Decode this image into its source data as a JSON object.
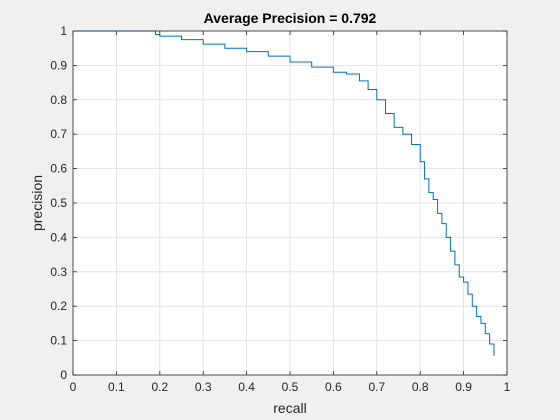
{
  "chart_data": {
    "type": "line",
    "title": "Average Precision = 0.792",
    "xlabel": "recall",
    "ylabel": "precision",
    "xlim": [
      0,
      1
    ],
    "ylim": [
      0,
      1
    ],
    "x_ticks": [
      0,
      0.1,
      0.2,
      0.3,
      0.4,
      0.5,
      0.6,
      0.7,
      0.8,
      0.9,
      1
    ],
    "y_ticks": [
      0,
      0.1,
      0.2,
      0.3,
      0.4,
      0.5,
      0.6,
      0.7,
      0.8,
      0.9,
      1
    ],
    "x_tick_labels": [
      "0",
      "0.1",
      "0.2",
      "0.3",
      "0.4",
      "0.5",
      "0.6",
      "0.7",
      "0.8",
      "0.9",
      "1"
    ],
    "y_tick_labels": [
      "0",
      "0.1",
      "0.2",
      "0.3",
      "0.4",
      "0.5",
      "0.6",
      "0.7",
      "0.8",
      "0.9",
      "1"
    ],
    "grid": true,
    "series_color": "#0072bd",
    "series": [
      {
        "x": [
          0.0,
          0.05,
          0.1,
          0.15,
          0.18,
          0.19,
          0.2,
          0.25,
          0.3,
          0.35,
          0.4,
          0.45,
          0.5,
          0.55,
          0.6,
          0.63,
          0.66,
          0.68,
          0.7,
          0.72,
          0.74,
          0.76,
          0.78,
          0.8,
          0.81,
          0.82,
          0.83,
          0.84,
          0.85,
          0.86,
          0.87,
          0.88,
          0.89,
          0.9,
          0.91,
          0.92,
          0.93,
          0.94,
          0.95,
          0.96,
          0.97
        ],
        "y": [
          1.0,
          1.0,
          1.0,
          1.0,
          1.0,
          0.99,
          0.985,
          0.975,
          0.962,
          0.95,
          0.94,
          0.927,
          0.91,
          0.895,
          0.88,
          0.875,
          0.855,
          0.83,
          0.8,
          0.76,
          0.72,
          0.7,
          0.67,
          0.62,
          0.57,
          0.53,
          0.51,
          0.47,
          0.44,
          0.4,
          0.36,
          0.32,
          0.285,
          0.27,
          0.235,
          0.2,
          0.17,
          0.15,
          0.12,
          0.09,
          0.055
        ]
      }
    ]
  }
}
